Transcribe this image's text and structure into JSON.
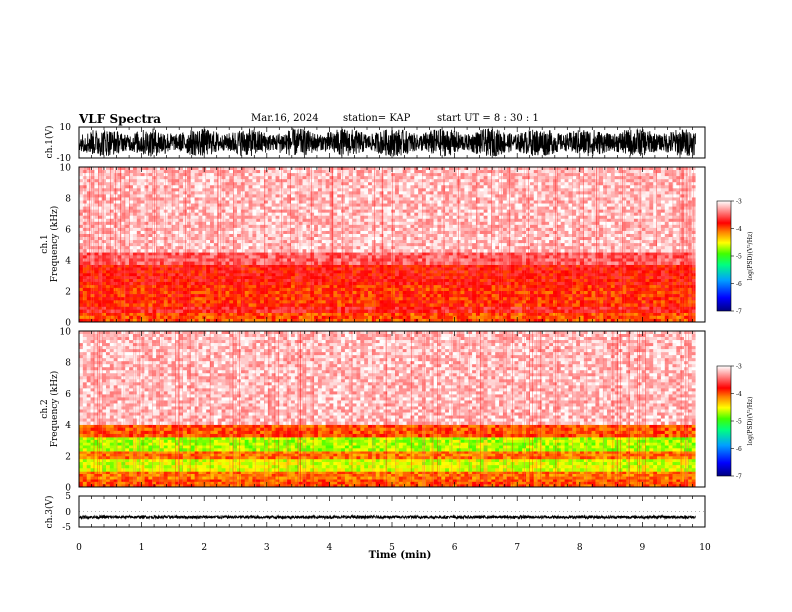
{
  "header": {
    "title": "VLF Spectra",
    "date": "Mar.16, 2024",
    "station": "station= KAP",
    "start": "start  UT  =   8  : 30 : 1"
  },
  "colorbar": {
    "label": "log(PSD)(V²/Hz)",
    "ticks": [
      "-3",
      "-4",
      "-5",
      "-6",
      "-7"
    ],
    "stops": [
      "#000080",
      "#0000ff",
      "#00a0ff",
      "#00ff80",
      "#40ff00",
      "#ffff00",
      "#ff8000",
      "#ff0000",
      "#ffffff"
    ]
  },
  "chart_data": [
    {
      "type": "line",
      "panel": "ch1-waveform",
      "ylabel": "ch.1(V)",
      "ylim": [
        -10,
        10
      ],
      "yticks": [
        "10",
        "-10"
      ],
      "xlim": [
        0,
        10
      ],
      "description_values": {
        "amplitude_range": [
          -9,
          9
        ],
        "x_end": 9.85
      }
    },
    {
      "type": "heatmap",
      "panel": "ch1-spectrogram",
      "ylabel": "ch.1\nFrequency  (kHz)",
      "ylim": [
        0,
        10
      ],
      "yticks": [
        "0",
        "2",
        "4",
        "6",
        "8",
        "10"
      ],
      "xlim": [
        0,
        10
      ],
      "zlim": [
        -7,
        -3
      ],
      "bands_khz": [
        [
          0,
          0.6,
          -4.0
        ],
        [
          0.6,
          1.0,
          -3.7
        ],
        [
          1.0,
          2.4,
          -3.9
        ],
        [
          2.4,
          3.7,
          -3.8
        ],
        [
          3.7,
          4.5,
          -3.5
        ],
        [
          4.5,
          10,
          -3.2
        ]
      ]
    },
    {
      "type": "heatmap",
      "panel": "ch2-spectrogram",
      "ylabel": "ch.2\nFrequency  (kHz)",
      "ylim": [
        0,
        10
      ],
      "yticks": [
        "0",
        "2",
        "4",
        "6",
        "8",
        "10"
      ],
      "xlim": [
        0,
        10
      ],
      "zlim": [
        -7,
        -3
      ],
      "bands_khz": [
        [
          0,
          0.5,
          -4.0
        ],
        [
          0.5,
          1.0,
          -4.1
        ],
        [
          1.0,
          1.8,
          -4.6
        ],
        [
          1.8,
          2.3,
          -4.1
        ],
        [
          2.3,
          3.2,
          -4.7
        ],
        [
          3.2,
          4.0,
          -4.0
        ],
        [
          4.0,
          10,
          -3.2
        ]
      ]
    },
    {
      "type": "line",
      "panel": "ch3-waveform",
      "ylabel": "ch.3(V)",
      "ylim": [
        -5,
        5
      ],
      "yticks": [
        "5",
        "0",
        "-5"
      ],
      "xlim": [
        0,
        10
      ],
      "xlabel": "Time  (min)",
      "xticks": [
        "0",
        "1",
        "2",
        "3",
        "4",
        "5",
        "6",
        "7",
        "8",
        "9",
        "10"
      ],
      "description_values": {
        "level": -1.8,
        "ripple": 0.5,
        "x_end": 9.85
      }
    }
  ]
}
